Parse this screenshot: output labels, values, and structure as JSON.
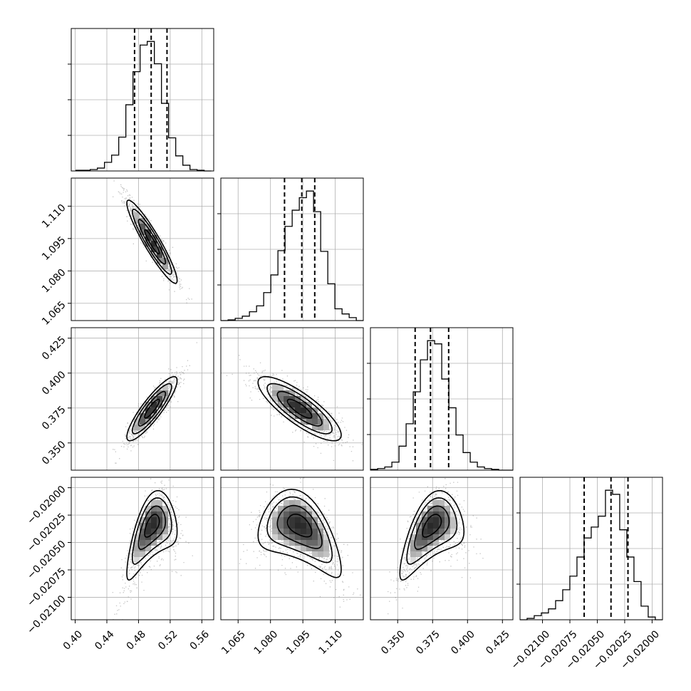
{
  "chart_data": {
    "type": "corner",
    "parameters": [
      {
        "id": "p0",
        "range": [
          0.395,
          0.575
        ],
        "ticks": [
          0.4,
          0.44,
          0.48,
          0.52,
          0.56
        ],
        "tick_labels": [
          "0.40",
          "0.44",
          "0.48",
          "0.52",
          "0.56"
        ],
        "quantiles": [
          0.475,
          0.496,
          0.516
        ],
        "hist_centers": [
          0.4055,
          0.4145,
          0.4235,
          0.4325,
          0.4415,
          0.4505,
          0.4595,
          0.4685,
          0.4775,
          0.4865,
          0.4955,
          0.5045,
          0.5135,
          0.5225,
          0.5315,
          0.5405,
          0.5495,
          0.5585,
          0.5675
        ],
        "hist_counts": [
          1,
          1,
          2,
          4,
          12,
          22,
          47,
          92,
          138,
          175,
          180,
          149,
          94,
          46,
          21,
          8,
          2,
          1,
          0
        ]
      },
      {
        "id": "p1",
        "range": [
          1.057,
          1.123
        ],
        "ticks": [
          1.065,
          1.08,
          1.095,
          1.11
        ],
        "tick_labels": [
          "1.065",
          "1.080",
          "1.095",
          "1.110"
        ],
        "quantiles": [
          1.0865,
          1.0945,
          1.1005
        ],
        "hist_centers": [
          1.0587,
          1.062,
          1.0653,
          1.0686,
          1.0719,
          1.0752,
          1.0785,
          1.0818,
          1.0851,
          1.0884,
          1.0917,
          1.095,
          1.0983,
          1.1016,
          1.1049,
          1.1082,
          1.1115,
          1.1148,
          1.1181,
          1.1214
        ],
        "hist_counts": [
          0,
          1,
          3,
          6,
          12,
          20,
          38,
          62,
          95,
          128,
          150,
          167,
          176,
          148,
          94,
          50,
          16,
          9,
          4,
          0
        ]
      },
      {
        "id": "p2",
        "range": [
          0.3305,
          0.4325
        ],
        "ticks": [
          0.35,
          0.375,
          0.4,
          0.425
        ],
        "tick_labels": [
          "0.350",
          "0.375",
          "0.400",
          "0.425"
        ],
        "quantiles": [
          0.3625,
          0.3735,
          0.3865
        ],
        "hist_centers": [
          0.3331,
          0.3382,
          0.3433,
          0.3484,
          0.3535,
          0.3586,
          0.3637,
          0.3688,
          0.3739,
          0.379,
          0.3841,
          0.3892,
          0.3943,
          0.3994,
          0.4045,
          0.4096,
          0.4147,
          0.4198,
          0.4249,
          0.43
        ],
        "hist_counts": [
          1,
          2,
          4,
          10,
          30,
          58,
          98,
          138,
          162,
          158,
          114,
          78,
          44,
          22,
          10,
          4,
          2,
          1,
          0,
          0
        ]
      },
      {
        "id": "p3",
        "range": [
          -0.021205,
          -0.019905
        ],
        "ticks": [
          -0.021,
          -0.02075,
          -0.0205,
          -0.02025,
          -0.02
        ],
        "tick_labels": [
          "−0.02100",
          "−0.02075",
          "−0.02050",
          "−0.02025",
          "−0.02000"
        ],
        "quantiles": [
          -0.02062,
          -0.020375,
          -0.02022
        ],
        "hist_centers": [
          -0.021173,
          -0.021108,
          -0.021043,
          -0.020978,
          -0.020913,
          -0.020848,
          -0.020783,
          -0.020718,
          -0.020653,
          -0.020588,
          -0.020523,
          -0.020458,
          -0.020393,
          -0.020328,
          -0.020263,
          -0.020198,
          -0.020133,
          -0.020068,
          -0.020003,
          -0.019938
        ],
        "hist_counts": [
          0,
          1,
          3,
          5,
          8,
          14,
          22,
          32,
          46,
          60,
          68,
          76,
          95,
          92,
          66,
          46,
          28,
          10,
          2,
          0
        ]
      }
    ],
    "pairs": [
      {
        "x": 0,
        "y": 1,
        "mean": [
          0.497,
          1.0935
        ],
        "sd": [
          0.0155,
          0.0094
        ],
        "rho": -0.93
      },
      {
        "x": 0,
        "y": 2,
        "mean": [
          0.497,
          0.3745
        ],
        "sd": [
          0.0155,
          0.0112
        ],
        "rho": 0.88
      },
      {
        "x": 1,
        "y": 2,
        "mean": [
          1.0935,
          0.3745
        ],
        "sd": [
          0.0094,
          0.0112
        ],
        "rho": -0.82
      },
      {
        "x": 0,
        "y": 3,
        "mean": [
          0.497,
          -0.0204
        ],
        "sd": [
          0.0155,
          0.00017
        ],
        "rho": 0.55,
        "curve": -0.7
      },
      {
        "x": 1,
        "y": 3,
        "mean": [
          1.0935,
          -0.0204
        ],
        "sd": [
          0.0094,
          0.00017
        ],
        "rho": -0.45,
        "curve": -0.7
      },
      {
        "x": 2,
        "y": 3,
        "mean": [
          0.3745,
          -0.0204
        ],
        "sd": [
          0.0112,
          0.00017
        ],
        "rho": 0.55,
        "curve": -0.7
      }
    ],
    "grid": true
  }
}
